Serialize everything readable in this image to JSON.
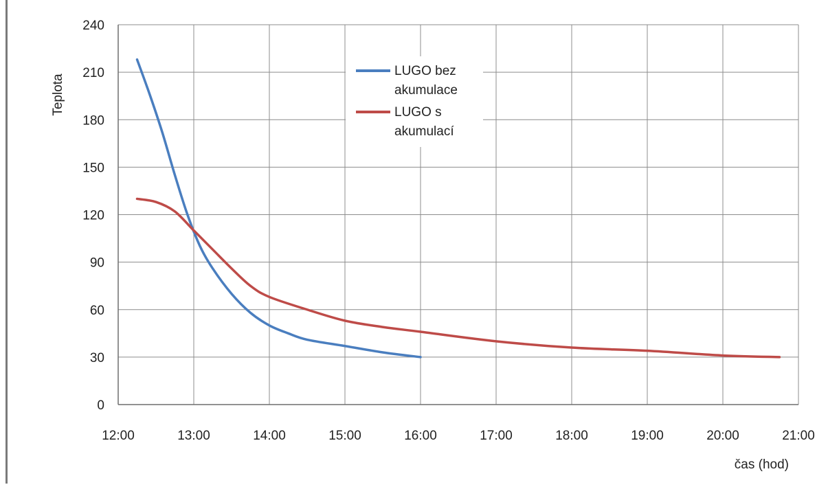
{
  "chart_data": {
    "type": "line",
    "xlabel": "čas (hod)",
    "ylabel": "Teplota",
    "xlim": [
      "12:00",
      "21:00"
    ],
    "ylim": [
      0,
      240
    ],
    "x_ticks": [
      "12:00",
      "13:00",
      "14:00",
      "15:00",
      "16:00",
      "17:00",
      "18:00",
      "19:00",
      "20:00",
      "21:00"
    ],
    "y_ticks": [
      0,
      30,
      60,
      90,
      120,
      150,
      180,
      210,
      240
    ],
    "grid": true,
    "legend_position": "top-center",
    "series": [
      {
        "name": "LUGO bez akumulace",
        "legend_lines": [
          "LUGO bez",
          "akumulace"
        ],
        "color": "#4a7ebf",
        "points": [
          [
            "12:15",
            218
          ],
          [
            "12:25",
            196
          ],
          [
            "12:35",
            172
          ],
          [
            "12:45",
            145
          ],
          [
            "12:55",
            120
          ],
          [
            "13:05",
            100
          ],
          [
            "13:15",
            86
          ],
          [
            "13:30",
            70
          ],
          [
            "13:45",
            58
          ],
          [
            "14:00",
            50
          ],
          [
            "14:15",
            45
          ],
          [
            "14:30",
            41
          ],
          [
            "15:00",
            37
          ],
          [
            "15:30",
            33
          ],
          [
            "16:00",
            30
          ]
        ]
      },
      {
        "name": "LUGO s akumulací",
        "legend_lines": [
          "LUGO s",
          "akumulací"
        ],
        "color": "#be4b48",
        "points": [
          [
            "12:15",
            130
          ],
          [
            "12:30",
            128
          ],
          [
            "12:45",
            122
          ],
          [
            "13:00",
            110
          ],
          [
            "13:15",
            98
          ],
          [
            "13:30",
            86
          ],
          [
            "13:45",
            75
          ],
          [
            "14:00",
            68
          ],
          [
            "14:30",
            60
          ],
          [
            "15:00",
            53
          ],
          [
            "15:30",
            49
          ],
          [
            "16:00",
            46
          ],
          [
            "17:00",
            40
          ],
          [
            "18:00",
            36
          ],
          [
            "19:00",
            34
          ],
          [
            "20:00",
            31
          ],
          [
            "20:45",
            30
          ]
        ]
      }
    ]
  }
}
